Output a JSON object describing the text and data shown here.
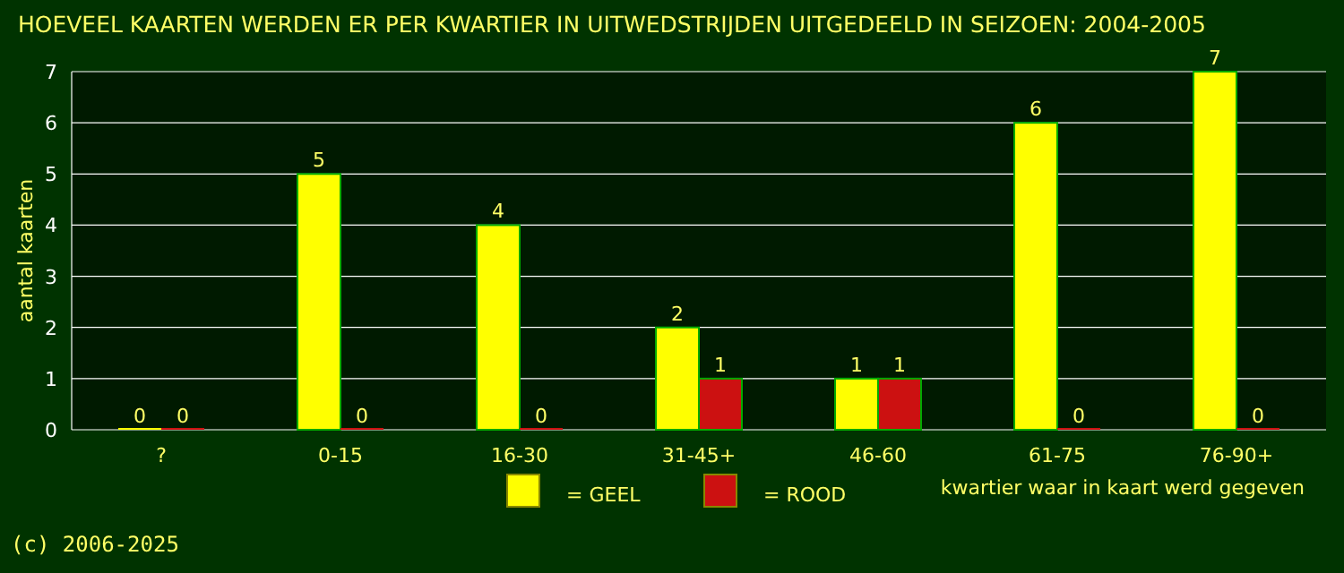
{
  "chart_data": {
    "type": "bar",
    "title": "HOEVEEL KAARTEN WERDEN ER PER KWARTIER IN UITWEDSTRIJDEN UITGEDEELD IN SEIZOEN: 2004-2005",
    "xlabel": "kwartier waar in kaart werd gegeven",
    "ylabel": "aantal kaarten",
    "annotations": [
      "(c) 2006-2025"
    ],
    "categories": [
      "?",
      "0-15",
      "16-30",
      "31-45+",
      "46-60",
      "61-75",
      "76-90+"
    ],
    "series": [
      {
        "name": "= GEEL",
        "color": "#ffff00",
        "values": [
          0,
          5,
          4,
          2,
          1,
          6,
          7
        ]
      },
      {
        "name": "= ROOD",
        "color": "#cc1111",
        "values": [
          0,
          0,
          0,
          1,
          1,
          0,
          0
        ]
      }
    ],
    "ylim": [
      0,
      7
    ],
    "yticks": [
      0,
      1,
      2,
      3,
      4,
      5,
      6,
      7
    ],
    "grid": "y",
    "legend": "bottom",
    "data_labels": true
  }
}
